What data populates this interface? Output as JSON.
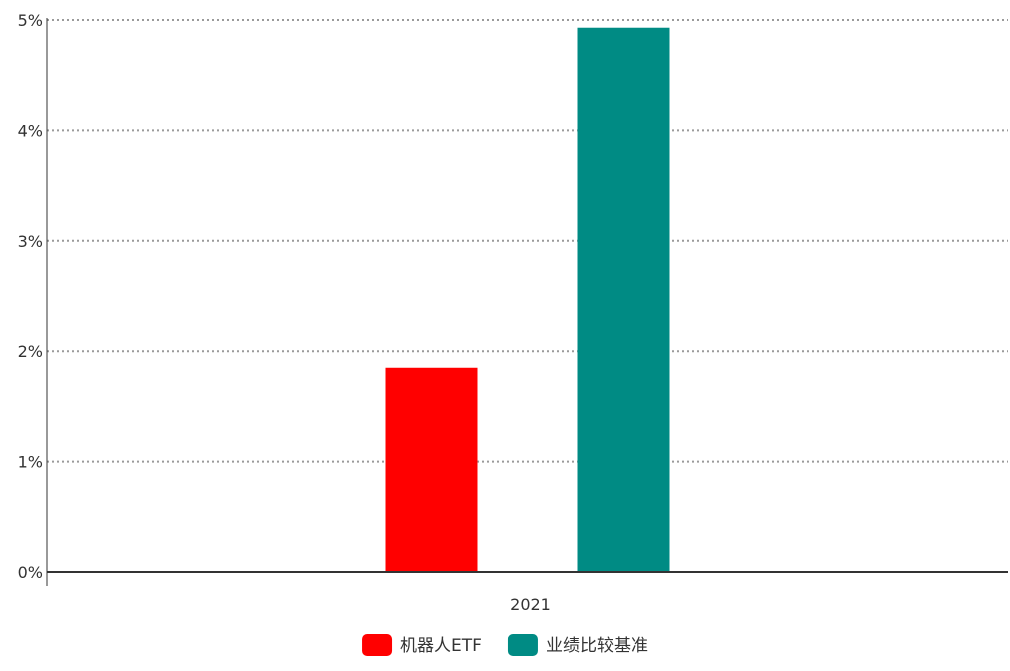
{
  "chart_data": {
    "type": "bar",
    "categories": [
      "2021"
    ],
    "series": [
      {
        "name": "机器人ETF",
        "values": [
          1.85
        ],
        "color": "#ff0000"
      },
      {
        "name": "业绩比较基准",
        "values": [
          4.93
        ],
        "color": "#008b84"
      }
    ],
    "y_ticks": [
      "0%",
      "1%",
      "2%",
      "3%",
      "4%",
      "5%"
    ],
    "ylim": [
      0,
      5
    ],
    "y_unit": "%",
    "grid": true,
    "grid_style": "dotted",
    "legend": "bottom-center",
    "title": "",
    "xlabel": "",
    "ylabel": ""
  }
}
